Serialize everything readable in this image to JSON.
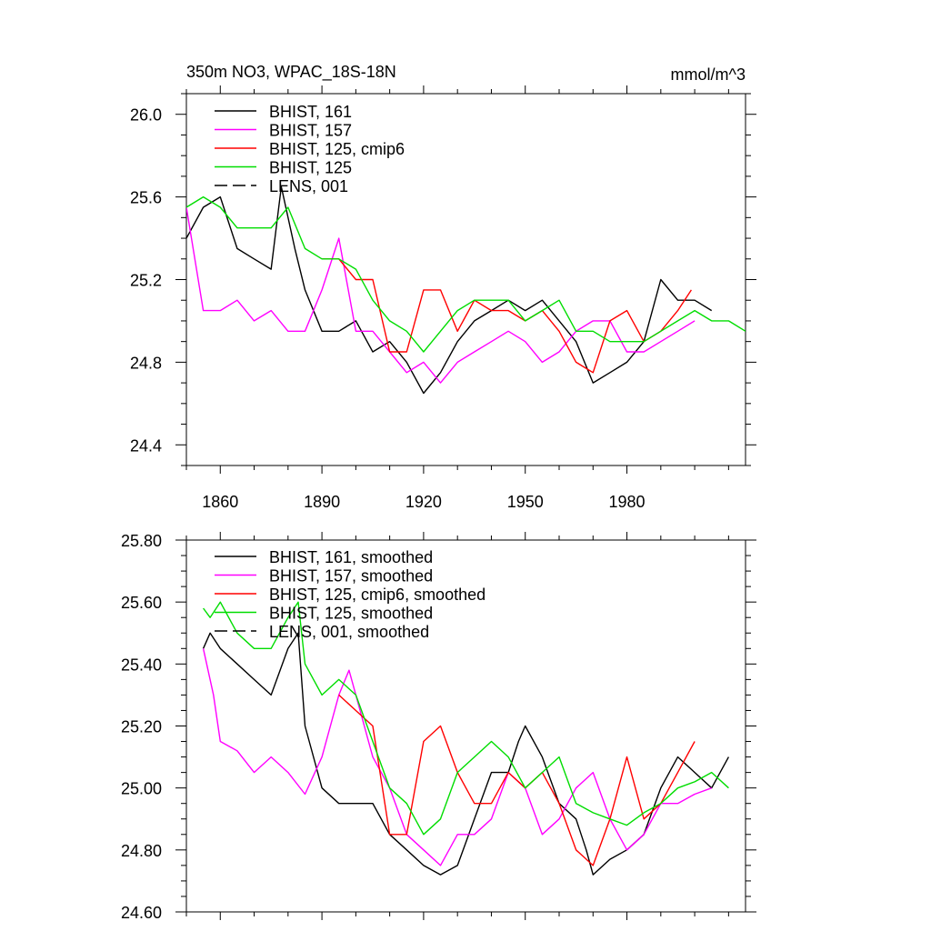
{
  "colors": {
    "black": "#000000",
    "magenta": "#ff00ff",
    "red": "#ff0000",
    "green": "#00dd00"
  },
  "chart_data": [
    {
      "type": "line",
      "title": "350m NO3, WPAC_18S-18N",
      "units": "mmol/m^3",
      "xlim": [
        1850,
        2015
      ],
      "ylim": [
        24.3,
        26.1
      ],
      "xticks": [
        1860,
        1890,
        1920,
        1950,
        1980
      ],
      "xtick_labels": [
        "1860",
        "1890",
        "1920",
        "1950",
        "1980"
      ],
      "yticks": [
        24.4,
        24.8,
        25.2,
        25.6,
        26.0
      ],
      "ytick_labels": [
        "24.4",
        "24.8",
        "25.2",
        "25.6",
        "26.0"
      ],
      "legend_position": "top-left",
      "legend": [
        {
          "label": "BHIST, 161",
          "color": "#000000",
          "dash": "solid"
        },
        {
          "label": "BHIST, 157",
          "color": "#ff00ff",
          "dash": "solid"
        },
        {
          "label": "BHIST, 125, cmip6",
          "color": "#ff0000",
          "dash": "solid"
        },
        {
          "label": "BHIST, 125",
          "color": "#00dd00",
          "dash": "solid"
        },
        {
          "label": "LENS, 001",
          "color": "#000000",
          "dash": "dashed"
        }
      ],
      "series": [
        {
          "color": "#000000",
          "x": [
            1850,
            1855,
            1860,
            1865,
            1870,
            1875,
            1878,
            1882,
            1885,
            1890,
            1895,
            1900,
            1905,
            1910,
            1915,
            1920,
            1925,
            1930,
            1935,
            1940,
            1945,
            1950,
            1955,
            1960,
            1965,
            1970,
            1975,
            1980,
            1985,
            1990,
            1995,
            2000,
            2005
          ],
          "y": [
            25.4,
            25.55,
            25.6,
            25.35,
            25.3,
            25.25,
            25.65,
            25.35,
            25.15,
            24.95,
            24.95,
            25.0,
            24.85,
            24.9,
            24.8,
            24.65,
            24.75,
            24.9,
            25.0,
            25.05,
            25.1,
            25.05,
            25.1,
            25.0,
            24.9,
            24.7,
            24.75,
            24.8,
            24.9,
            25.2,
            25.1,
            25.1,
            25.05
          ]
        },
        {
          "color": "#ff00ff",
          "x": [
            1850,
            1855,
            1860,
            1865,
            1870,
            1875,
            1880,
            1885,
            1890,
            1895,
            1900,
            1905,
            1910,
            1915,
            1920,
            1925,
            1930,
            1935,
            1940,
            1945,
            1950,
            1955,
            1960,
            1965,
            1970,
            1975,
            1980,
            1985,
            1990,
            1995,
            2000
          ],
          "y": [
            25.55,
            25.05,
            25.05,
            25.1,
            25.0,
            25.05,
            24.95,
            24.95,
            25.15,
            25.4,
            24.95,
            24.95,
            24.85,
            24.75,
            24.8,
            24.7,
            24.8,
            24.85,
            24.9,
            24.95,
            24.9,
            24.8,
            24.85,
            24.95,
            25.0,
            25.0,
            24.85,
            24.85,
            24.9,
            24.95,
            25.0
          ]
        },
        {
          "color": "#ff0000",
          "x": [
            1890,
            1895,
            1900,
            1905,
            1910,
            1915,
            1920,
            1925,
            1930,
            1935,
            1940,
            1945,
            1950,
            1955,
            1960,
            1965,
            1970,
            1975,
            1980,
            1985,
            1990,
            1995,
            1999
          ],
          "y": [
            25.3,
            25.3,
            25.2,
            25.2,
            24.85,
            24.85,
            25.15,
            25.15,
            24.95,
            25.1,
            25.05,
            25.05,
            25.0,
            25.05,
            24.95,
            24.8,
            24.75,
            25.0,
            25.05,
            24.9,
            24.95,
            25.05,
            25.15
          ]
        },
        {
          "color": "#00dd00",
          "x": [
            1850,
            1855,
            1860,
            1865,
            1870,
            1875,
            1880,
            1885,
            1890,
            1895,
            1900,
            1905,
            1910,
            1915,
            1920,
            1925,
            1930,
            1935,
            1940,
            1945,
            1950,
            1955,
            1960,
            1965,
            1970,
            1975,
            1980,
            1985,
            1990,
            1995,
            2000,
            2005,
            2010,
            2015
          ],
          "y": [
            25.55,
            25.6,
            25.55,
            25.45,
            25.45,
            25.45,
            25.55,
            25.35,
            25.3,
            25.3,
            25.25,
            25.1,
            25.0,
            24.95,
            24.85,
            24.95,
            25.05,
            25.1,
            25.1,
            25.1,
            25.0,
            25.05,
            25.1,
            24.95,
            24.95,
            24.9,
            24.9,
            24.9,
            24.95,
            25.0,
            25.05,
            25.0,
            25.0,
            24.95
          ]
        }
      ]
    },
    {
      "type": "line",
      "title": "",
      "xlim": [
        1850,
        2015
      ],
      "ylim": [
        24.6,
        25.8
      ],
      "xticks": [
        1860,
        1890,
        1920,
        1950,
        1980
      ],
      "xtick_labels": [],
      "yticks": [
        24.6,
        24.8,
        25.0,
        25.2,
        25.4,
        25.6,
        25.8
      ],
      "ytick_labels": [
        "24.60",
        "24.80",
        "25.00",
        "25.20",
        "25.40",
        "25.60",
        "25.80"
      ],
      "legend_position": "top-left",
      "legend": [
        {
          "label": "BHIST, 161, smoothed",
          "color": "#000000",
          "dash": "solid"
        },
        {
          "label": "BHIST, 157, smoothed",
          "color": "#ff00ff",
          "dash": "solid"
        },
        {
          "label": "BHIST, 125, cmip6, smoothed",
          "color": "#ff0000",
          "dash": "solid"
        },
        {
          "label": "BHIST, 125, smoothed",
          "color": "#00dd00",
          "dash": "solid"
        },
        {
          "label": "LENS, 001, smoothed",
          "color": "#000000",
          "dash": "dashed"
        }
      ],
      "series": [
        {
          "color": "#000000",
          "x": [
            1855,
            1857,
            1860,
            1865,
            1870,
            1875,
            1880,
            1883,
            1885,
            1890,
            1895,
            1900,
            1905,
            1910,
            1915,
            1920,
            1925,
            1930,
            1935,
            1940,
            1945,
            1948,
            1950,
            1955,
            1960,
            1965,
            1968,
            1970,
            1975,
            1980,
            1985,
            1990,
            1995,
            2000,
            2005,
            2010
          ],
          "y": [
            25.45,
            25.5,
            25.45,
            25.4,
            25.35,
            25.3,
            25.45,
            25.5,
            25.2,
            25.0,
            24.95,
            24.95,
            24.95,
            24.85,
            24.8,
            24.75,
            24.72,
            24.75,
            24.9,
            25.05,
            25.05,
            25.15,
            25.2,
            25.1,
            24.95,
            24.9,
            24.8,
            24.72,
            24.77,
            24.8,
            24.85,
            25.0,
            25.1,
            25.05,
            25.0,
            25.1
          ]
        },
        {
          "color": "#ff00ff",
          "x": [
            1855,
            1858,
            1860,
            1865,
            1870,
            1875,
            1880,
            1885,
            1890,
            1895,
            1898,
            1900,
            1905,
            1910,
            1915,
            1920,
            1925,
            1930,
            1935,
            1940,
            1945,
            1950,
            1955,
            1960,
            1965,
            1970,
            1975,
            1980,
            1985,
            1990,
            1995,
            2000,
            2005
          ],
          "y": [
            25.45,
            25.3,
            25.15,
            25.12,
            25.05,
            25.1,
            25.05,
            24.98,
            25.1,
            25.3,
            25.38,
            25.3,
            25.1,
            25.0,
            24.85,
            24.8,
            24.75,
            24.85,
            24.85,
            24.9,
            25.05,
            25.0,
            24.85,
            24.9,
            25.0,
            25.05,
            24.9,
            24.8,
            24.85,
            24.95,
            24.95,
            24.98,
            25.0
          ]
        },
        {
          "color": "#ff0000",
          "x": [
            1895,
            1900,
            1905,
            1910,
            1915,
            1920,
            1925,
            1930,
            1935,
            1940,
            1945,
            1950,
            1955,
            1960,
            1965,
            1970,
            1975,
            1980,
            1985,
            1990,
            1995,
            2000
          ],
          "y": [
            25.3,
            25.25,
            25.2,
            24.85,
            24.85,
            25.15,
            25.2,
            25.05,
            24.95,
            24.95,
            25.05,
            25.0,
            25.05,
            24.95,
            24.8,
            24.75,
            24.9,
            25.1,
            24.9,
            24.95,
            25.05,
            25.15
          ]
        },
        {
          "color": "#00dd00",
          "x": [
            1855,
            1857,
            1860,
            1865,
            1870,
            1875,
            1880,
            1883,
            1885,
            1890,
            1895,
            1900,
            1905,
            1910,
            1915,
            1920,
            1925,
            1930,
            1935,
            1940,
            1945,
            1950,
            1955,
            1960,
            1965,
            1970,
            1975,
            1980,
            1985,
            1990,
            1995,
            2000,
            2005,
            2010
          ],
          "y": [
            25.58,
            25.55,
            25.6,
            25.5,
            25.45,
            25.45,
            25.55,
            25.6,
            25.4,
            25.3,
            25.35,
            25.3,
            25.15,
            25.0,
            24.95,
            24.85,
            24.9,
            25.05,
            25.1,
            25.15,
            25.1,
            25.0,
            25.05,
            25.1,
            24.95,
            24.92,
            24.9,
            24.88,
            24.92,
            24.95,
            25.0,
            25.02,
            25.05,
            25.0
          ]
        }
      ]
    }
  ]
}
